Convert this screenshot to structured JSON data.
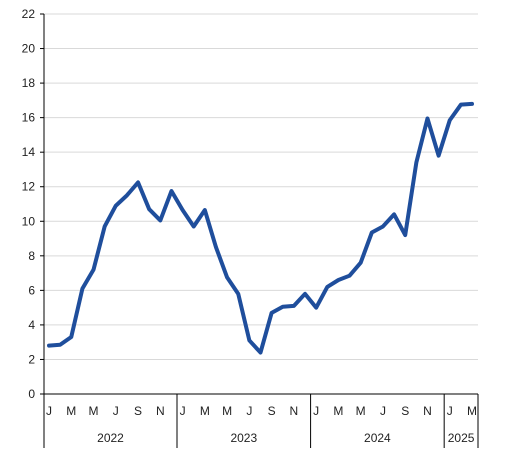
{
  "chart_data": {
    "type": "line",
    "title": "",
    "xlabel": "",
    "ylabel": "",
    "ylim": [
      0,
      22
    ],
    "yticks": [
      0,
      2,
      4,
      6,
      8,
      10,
      12,
      14,
      16,
      18,
      20,
      22
    ],
    "grid": true,
    "legend": "none",
    "line_color": "#1f4e9c",
    "grid_color": "#d9d9d9",
    "axis_color": "#000000",
    "month_tick_labels": [
      "J",
      "M",
      "M",
      "J",
      "S",
      "N",
      "J",
      "M",
      "M",
      "J",
      "S",
      "N",
      "J",
      "M",
      "M",
      "J",
      "S",
      "N",
      "J",
      "M"
    ],
    "years": [
      {
        "label": "2022",
        "start_index": 0,
        "end_index": 11
      },
      {
        "label": "2023",
        "start_index": 12,
        "end_index": 23
      },
      {
        "label": "2024",
        "start_index": 24,
        "end_index": 35
      },
      {
        "label": "2025",
        "start_index": 36,
        "end_index": 38
      }
    ],
    "series": [
      {
        "values": [
          2.8,
          2.85,
          3.3,
          6.1,
          7.2,
          9.7,
          10.9,
          11.5,
          12.25,
          10.7,
          10.05,
          11.75,
          10.65,
          9.7,
          10.65,
          8.5,
          6.75,
          5.8,
          3.1,
          2.4,
          4.7,
          5.05,
          5.1,
          5.8,
          5.0,
          6.2,
          6.6,
          6.85,
          7.6,
          9.35,
          9.7,
          10.4,
          9.2,
          13.4,
          15.95,
          13.8,
          15.85,
          16.75,
          16.8
        ]
      }
    ]
  }
}
